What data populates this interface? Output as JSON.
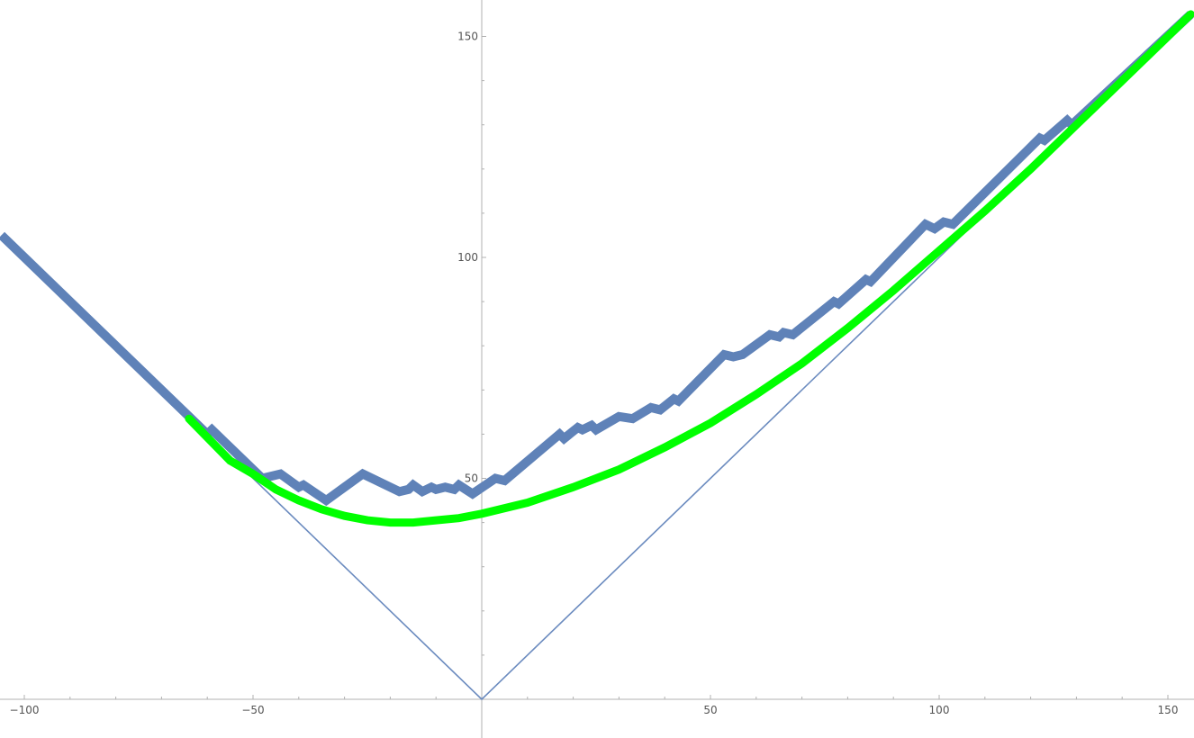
{
  "chart_data": {
    "type": "line",
    "title": "",
    "xlabel": "",
    "ylabel": "",
    "xlim": [
      -105,
      155
    ],
    "ylim": [
      0,
      158
    ],
    "grid": false,
    "x_ticks": [
      -100,
      -50,
      50,
      100,
      150
    ],
    "y_ticks": [
      50,
      100,
      150
    ],
    "colors": {
      "walk": "#5f82b8",
      "smooth": "#00ff00",
      "envelope": "#6b8bbf",
      "axis": "#b0b0b0",
      "tick_text": "#555555"
    },
    "series": [
      {
        "key": "envelope",
        "style": "thin",
        "points": [
          [
            -105,
            105
          ],
          [
            0,
            0
          ],
          [
            155,
            155
          ]
        ]
      },
      {
        "key": "walk",
        "style": "thick",
        "points": [
          [
            -105,
            105
          ],
          [
            -60,
            60
          ],
          [
            -59,
            61
          ],
          [
            -48,
            50
          ],
          [
            -44,
            51
          ],
          [
            -40,
            48
          ],
          [
            -39,
            48.5
          ],
          [
            -34,
            45
          ],
          [
            -26,
            51
          ],
          [
            -24,
            50
          ],
          [
            -18,
            47
          ],
          [
            -16,
            47.5
          ],
          [
            -15,
            48.5
          ],
          [
            -13,
            47
          ],
          [
            -11,
            48
          ],
          [
            -10,
            47.5
          ],
          [
            -8,
            48
          ],
          [
            -6,
            47.5
          ],
          [
            -5,
            48.5
          ],
          [
            -2,
            46.5
          ],
          [
            3,
            50
          ],
          [
            5,
            49.5
          ],
          [
            17,
            60
          ],
          [
            18,
            59
          ],
          [
            21,
            61.5
          ],
          [
            22,
            61
          ],
          [
            24,
            62
          ],
          [
            25,
            61
          ],
          [
            30,
            64
          ],
          [
            33,
            63.5
          ],
          [
            37,
            66
          ],
          [
            39,
            65.5
          ],
          [
            42,
            68
          ],
          [
            43,
            67.5
          ],
          [
            53,
            78
          ],
          [
            55,
            77.5
          ],
          [
            57,
            78
          ],
          [
            63,
            82.5
          ],
          [
            65,
            82
          ],
          [
            66,
            83
          ],
          [
            68,
            82.5
          ],
          [
            77,
            90
          ],
          [
            78,
            89.5
          ],
          [
            84,
            95
          ],
          [
            85,
            94.5
          ],
          [
            97,
            107.5
          ],
          [
            99,
            106.5
          ],
          [
            101,
            108
          ],
          [
            103,
            107.5
          ],
          [
            122,
            127
          ],
          [
            123,
            126.5
          ],
          [
            128,
            131
          ],
          [
            129,
            130
          ],
          [
            155,
            155
          ]
        ]
      },
      {
        "key": "smooth",
        "style": "thick",
        "points": [
          [
            -64,
            63.5
          ],
          [
            -55,
            54
          ],
          [
            -50,
            51
          ],
          [
            -45,
            47.5
          ],
          [
            -40,
            45
          ],
          [
            -35,
            43
          ],
          [
            -30,
            41.5
          ],
          [
            -25,
            40.5
          ],
          [
            -20,
            40
          ],
          [
            -15,
            40
          ],
          [
            -10,
            40.5
          ],
          [
            -5,
            41
          ],
          [
            0,
            42
          ],
          [
            10,
            44.5
          ],
          [
            20,
            48
          ],
          [
            30,
            52
          ],
          [
            40,
            57
          ],
          [
            50,
            62.5
          ],
          [
            60,
            69
          ],
          [
            70,
            76
          ],
          [
            80,
            84
          ],
          [
            90,
            92.5
          ],
          [
            100,
            101.5
          ],
          [
            110,
            110.5
          ],
          [
            120,
            120
          ],
          [
            130,
            130
          ],
          [
            140,
            140
          ],
          [
            155,
            155
          ]
        ]
      }
    ]
  }
}
